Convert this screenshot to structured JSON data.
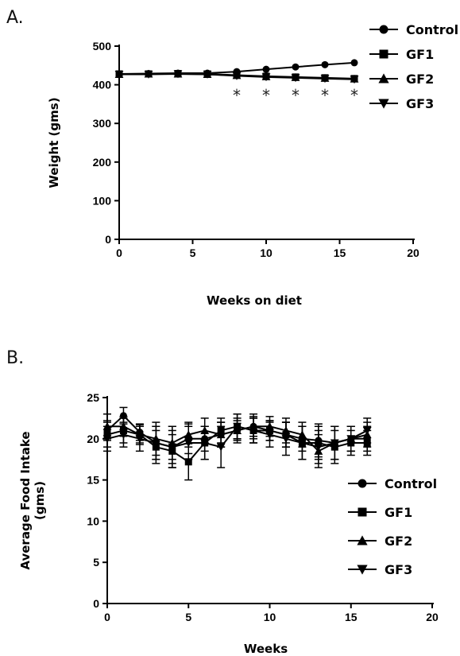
{
  "panels": {
    "a_label": "A.",
    "b_label": "B."
  },
  "chart_data": [
    {
      "type": "line",
      "panel": "A.",
      "xlabel": "Weeks on diet",
      "ylabel": "Weight (gms)",
      "xlim": [
        0,
        20
      ],
      "ylim": [
        0,
        500
      ],
      "xticks": [
        "0",
        "5",
        "10",
        "15",
        "20"
      ],
      "yticks": [
        "0",
        "100",
        "200",
        "300",
        "400",
        "500"
      ],
      "legend_position": "top-right",
      "x": [
        0,
        2,
        4,
        6,
        8,
        10,
        12,
        14,
        16
      ],
      "series": [
        {
          "name": "Control",
          "marker": "circle",
          "values": [
            428,
            429,
            430,
            430,
            434,
            440,
            446,
            452,
            457
          ]
        },
        {
          "name": "GF1",
          "marker": "square",
          "values": [
            428,
            428,
            429,
            428,
            425,
            422,
            420,
            418,
            416
          ]
        },
        {
          "name": "GF2",
          "marker": "triangle-up",
          "values": [
            427,
            428,
            428,
            427,
            424,
            421,
            419,
            417,
            415
          ]
        },
        {
          "name": "GF3",
          "marker": "triangle-down",
          "values": [
            427,
            427,
            428,
            427,
            423,
            420,
            418,
            416,
            414
          ]
        }
      ],
      "annotations": [
        {
          "text": "*",
          "x": 8,
          "y": 375
        },
        {
          "text": "*",
          "x": 10,
          "y": 375
        },
        {
          "text": "*",
          "x": 12,
          "y": 375
        },
        {
          "text": "*",
          "x": 14,
          "y": 375
        },
        {
          "text": "*",
          "x": 16,
          "y": 375
        }
      ]
    },
    {
      "type": "line",
      "panel": "B.",
      "xlabel": "Weeks",
      "ylabel": "Average Food Intake (gms)",
      "ylabel_lines": [
        "Average Food  Intake",
        "(gms)"
      ],
      "xlim": [
        0,
        20
      ],
      "ylim": [
        0,
        25
      ],
      "xticks": [
        "0",
        "5",
        "10",
        "15",
        "20"
      ],
      "yticks": [
        "0",
        "5",
        "10",
        "15",
        "20",
        "25"
      ],
      "legend_position": "bottom-right",
      "x": [
        0,
        1,
        2,
        3,
        4,
        5,
        6,
        7,
        8,
        9,
        10,
        11,
        12,
        13,
        14,
        15,
        16
      ],
      "series": [
        {
          "name": "Control",
          "marker": "circle",
          "values": [
            21.0,
            22.8,
            20.8,
            19.5,
            19.0,
            20.0,
            20.0,
            20.5,
            21.0,
            21.5,
            21.0,
            20.5,
            20.0,
            19.8,
            19.5,
            20.0,
            20.0
          ],
          "error": [
            1.2,
            1.0,
            1.0,
            2.0,
            2.0,
            1.8,
            1.5,
            1.5,
            1.2,
            1.2,
            1.2,
            1.5,
            1.5,
            2.0,
            2.0,
            1.5,
            1.5
          ]
        },
        {
          "name": "GF1",
          "marker": "square",
          "values": [
            20.5,
            21.0,
            20.5,
            19.0,
            18.5,
            17.2,
            19.5,
            21.0,
            21.5,
            21.0,
            21.0,
            20.5,
            19.5,
            19.5,
            19.0,
            19.5,
            19.5
          ],
          "error": [
            1.5,
            1.5,
            1.0,
            2.0,
            2.0,
            2.2,
            2.0,
            1.5,
            1.5,
            1.5,
            1.2,
            1.5,
            2.0,
            2.0,
            2.0,
            1.5,
            1.5
          ]
        },
        {
          "name": "GF2",
          "marker": "triangle-up",
          "values": [
            21.5,
            21.5,
            20.5,
            20.0,
            19.5,
            20.5,
            21.0,
            20.5,
            21.0,
            21.5,
            21.5,
            21.0,
            20.5,
            18.5,
            19.5,
            20.0,
            20.5
          ],
          "error": [
            1.5,
            1.2,
            1.2,
            2.0,
            2.0,
            1.5,
            1.5,
            1.5,
            1.5,
            1.5,
            1.2,
            1.5,
            1.5,
            2.0,
            2.0,
            1.5,
            1.5
          ]
        },
        {
          "name": "GF3",
          "marker": "triangle-down",
          "values": [
            20.0,
            20.5,
            20.0,
            19.5,
            19.0,
            19.5,
            19.5,
            19.0,
            21.5,
            21.0,
            20.5,
            20.0,
            19.5,
            19.0,
            19.5,
            20.0,
            21.0
          ],
          "error": [
            1.5,
            1.5,
            1.5,
            2.0,
            2.5,
            2.0,
            2.0,
            2.5,
            1.5,
            1.5,
            1.5,
            2.0,
            2.0,
            2.0,
            2.0,
            1.5,
            1.5
          ]
        }
      ]
    }
  ]
}
